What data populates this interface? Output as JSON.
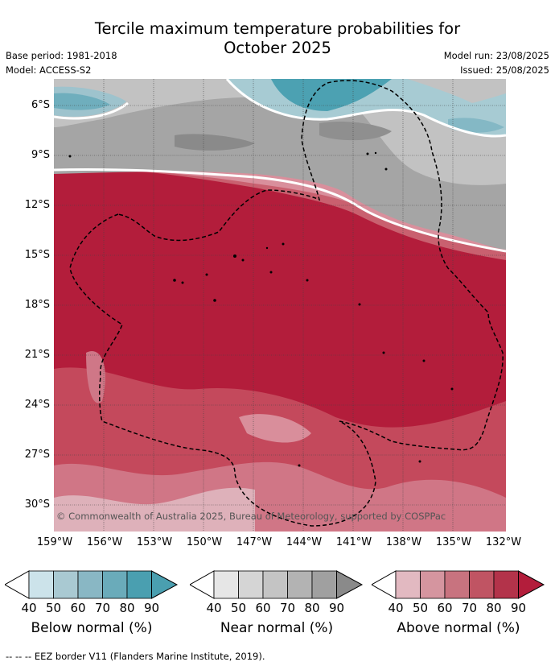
{
  "header": {
    "title_line1": "Tercile maximum temperature probabilities for",
    "title_line2": "October 2025",
    "base_period": "Base period: 1981-2018",
    "model": "Model: ACCESS-S2",
    "model_run": "Model run: 23/08/2025",
    "issued": "Issued: 25/08/2025"
  },
  "map": {
    "lat_labels": [
      "6°S",
      "9°S",
      "12°S",
      "15°S",
      "18°S",
      "21°S",
      "24°S",
      "27°S",
      "30°S"
    ],
    "lon_labels": [
      "159°W",
      "156°W",
      "153°W",
      "150°W",
      "147°W",
      "144°W",
      "141°W",
      "138°W",
      "135°W",
      "132°W"
    ],
    "copyright": "© Commonwealth of Australia 2025, Bureau of Meteorology, supported by COSPPac",
    "dominant_categories": [
      "Below normal (north-east corner and north-west corner)",
      "Near normal (northern band)",
      "Above normal (central and southern region)"
    ]
  },
  "colorbars": [
    {
      "label": "Below normal (%)",
      "ticks": [
        "40",
        "50",
        "60",
        "70",
        "80",
        "90"
      ],
      "colors": [
        "#ffffff",
        "#cce3ea",
        "#a9c9d2",
        "#89b7c4",
        "#6aabba",
        "#4a9fb0"
      ]
    },
    {
      "label": "Near normal (%)",
      "ticks": [
        "40",
        "50",
        "60",
        "70",
        "80",
        "90"
      ],
      "colors": [
        "#ffffff",
        "#e6e6e6",
        "#d5d5d5",
        "#c4c4c4",
        "#b3b3b3",
        "#a0a0a0"
      ]
    },
    {
      "label": "Above normal (%)",
      "ticks": [
        "40",
        "50",
        "60",
        "70",
        "80",
        "90"
      ],
      "colors": [
        "#ffffff",
        "#e2b9c1",
        "#d5959f",
        "#c8737f",
        "#c05463",
        "#b3334a"
      ]
    }
  ],
  "footnote": "--  --  -- EEZ border V11 (Flanders Marine Institute, 2019)."
}
